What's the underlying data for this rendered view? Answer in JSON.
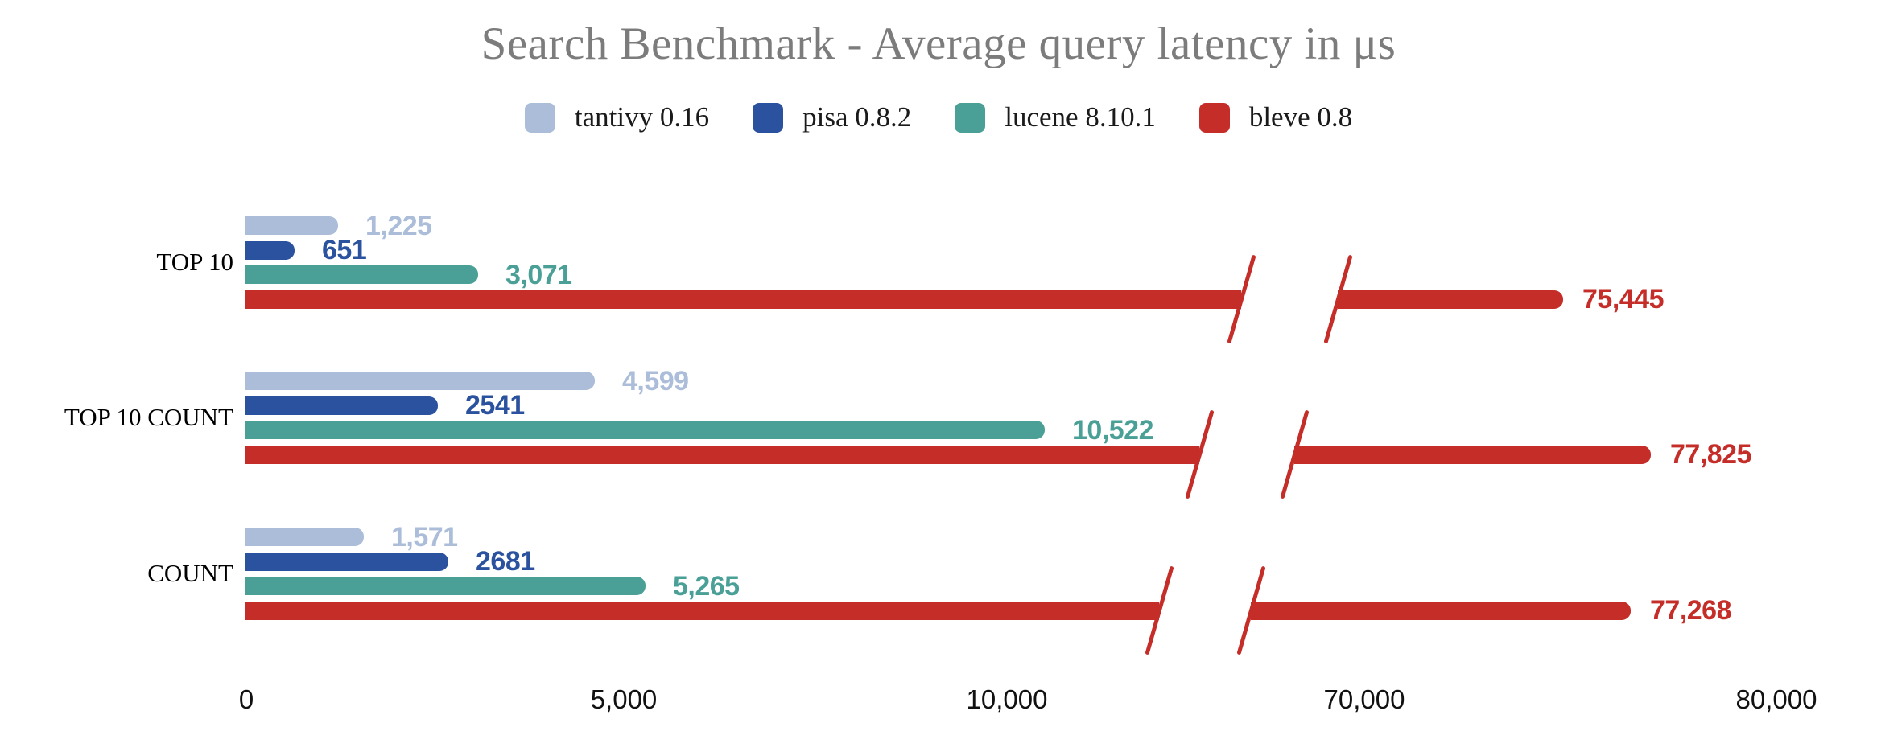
{
  "chart_data": {
    "type": "bar",
    "orientation": "horizontal",
    "title": "Search Benchmark - Average query latency in μs",
    "units": "μs",
    "categories": [
      "TOP 10",
      "TOP 10 COUNT",
      "COUNT"
    ],
    "series": [
      {
        "name": "tantivy 0.16",
        "color": "#abbdd9",
        "values": [
          1225,
          4599,
          1571
        ],
        "value_labels": [
          "1,225",
          "4,599",
          "1,571"
        ]
      },
      {
        "name": "pisa 0.8.2",
        "color": "#2b529e",
        "values": [
          651,
          2541,
          2681
        ],
        "value_labels": [
          "651",
          "2541",
          "2681"
        ]
      },
      {
        "name": "lucene 8.10.1",
        "color": "#4aa097",
        "values": [
          3071,
          10522,
          5265
        ],
        "value_labels": [
          "3,071",
          "10,522",
          "5,265"
        ]
      },
      {
        "name": "bleve 0.8",
        "color": "#c52d28",
        "values": [
          75445,
          77825,
          77268
        ],
        "value_labels": [
          "75,445",
          "77,825",
          "77,268"
        ]
      }
    ],
    "x_axis": {
      "tick_labels": [
        "0",
        "5,000",
        "10,000",
        "70,000",
        "80,000"
      ],
      "tick_values": [
        0,
        5000,
        10000,
        70000,
        80000
      ],
      "axis_break": true,
      "break_between": [
        10000,
        70000
      ],
      "gridlines": false
    },
    "legend_position": "top",
    "title_color": "#7c7c7c",
    "background_color": "#ffffff"
  }
}
